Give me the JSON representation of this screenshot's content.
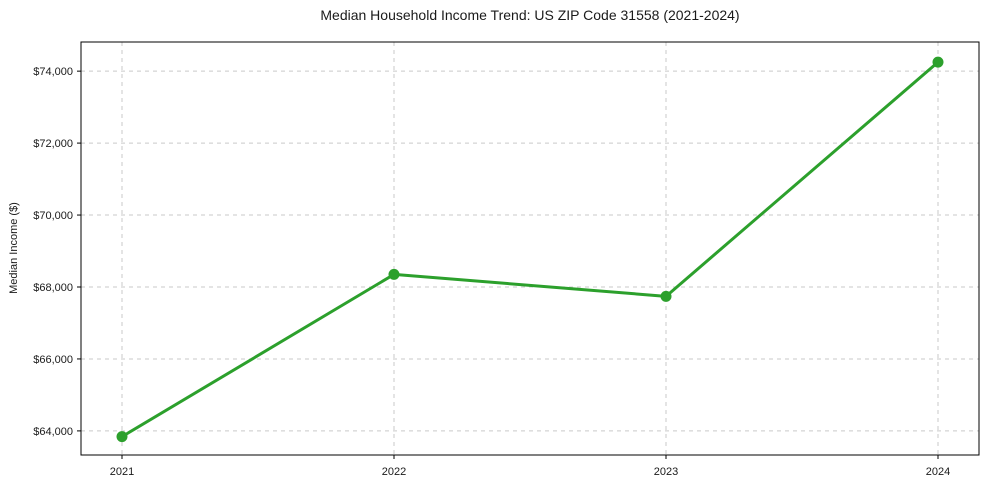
{
  "chart_data": {
    "type": "line",
    "title": "Median Household Income Trend: US ZIP Code 31558 (2021-2024)",
    "xlabel": "",
    "ylabel": "Median Income ($)",
    "categories": [
      "2021",
      "2022",
      "2023",
      "2024"
    ],
    "series": [
      {
        "name": "Median Household Income",
        "values": [
          63840,
          68350,
          67740,
          74250
        ],
        "color": "#2ca02c",
        "marker": "circle"
      }
    ],
    "yticks": [
      64000,
      66000,
      68000,
      70000,
      72000,
      74000
    ],
    "ytick_labels": [
      "$64,000",
      "$66,000",
      "$68,000",
      "$70,000",
      "$72,000",
      "$74,000"
    ],
    "ylim": [
      63330,
      74810
    ],
    "grid": true,
    "grid_style": "dashed",
    "legend": "none"
  },
  "colors": {
    "line": "#2ca02c",
    "grid": "#c9c9c9",
    "axis": "#000000",
    "text": "#1a1a1a",
    "background": "#ffffff"
  }
}
